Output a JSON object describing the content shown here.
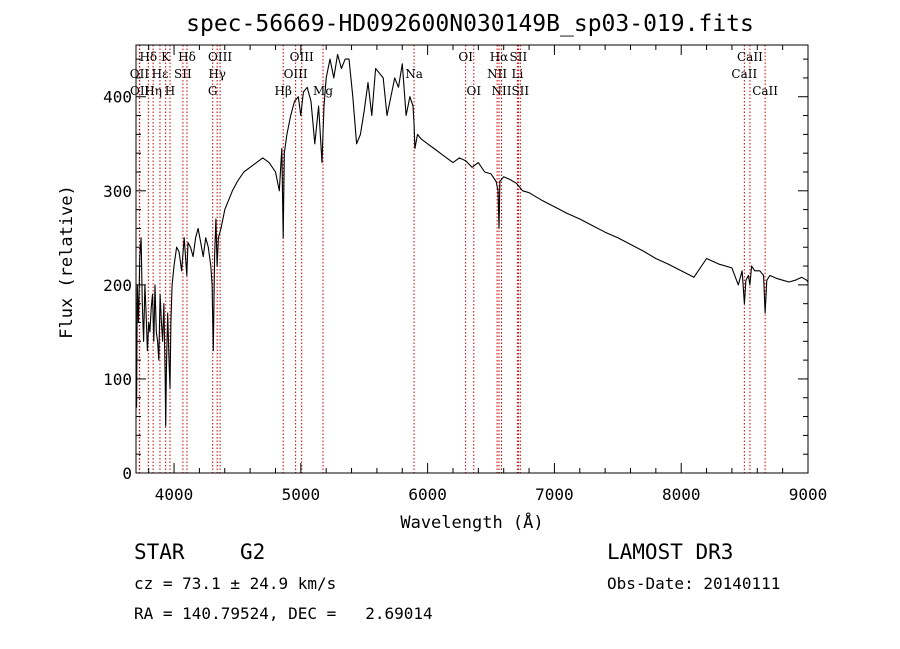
{
  "chart_data": {
    "type": "line",
    "title": "spec-56669-HD092600N030149B_sp03-019.fits",
    "xlabel": "Wavelength (Å)",
    "ylabel": "Flux (relative)",
    "xlim": [
      3700,
      9000
    ],
    "ylim": [
      0,
      455
    ],
    "xticks": [
      4000,
      5000,
      6000,
      7000,
      8000,
      9000
    ],
    "yticks": [
      0,
      100,
      200,
      300,
      400
    ],
    "x_minor_step": 200,
    "y_minor_step": 20,
    "line_color": "#000000",
    "marker_color": "#cc0000",
    "series": [
      {
        "name": "flux",
        "x": [
          3700,
          3705,
          3710,
          3720,
          3730,
          3740,
          3750,
          3760,
          3770,
          3780,
          3790,
          3800,
          3810,
          3820,
          3830,
          3840,
          3850,
          3860,
          3870,
          3880,
          3890,
          3900,
          3910,
          3920,
          3930,
          3934,
          3940,
          3950,
          3960,
          3968,
          3975,
          3985,
          4000,
          4020,
          4040,
          4060,
          4080,
          4101,
          4110,
          4130,
          4150,
          4170,
          4190,
          4210,
          4230,
          4250,
          4270,
          4290,
          4300,
          4310,
          4320,
          4330,
          4340,
          4350,
          4370,
          4400,
          4430,
          4460,
          4500,
          4550,
          4600,
          4650,
          4700,
          4750,
          4800,
          4830,
          4850,
          4861,
          4870,
          4890,
          4920,
          4950,
          4980,
          5000,
          5020,
          5050,
          5080,
          5110,
          5140,
          5167,
          5173,
          5183,
          5200,
          5230,
          5260,
          5290,
          5320,
          5350,
          5380,
          5410,
          5440,
          5470,
          5500,
          5530,
          5560,
          5590,
          5620,
          5650,
          5680,
          5710,
          5740,
          5770,
          5800,
          5830,
          5860,
          5885,
          5893,
          5900,
          5920,
          5950,
          6000,
          6050,
          6100,
          6150,
          6200,
          6250,
          6300,
          6350,
          6400,
          6450,
          6500,
          6540,
          6555,
          6563,
          6570,
          6600,
          6650,
          6700,
          6750,
          6800,
          6900,
          7000,
          7100,
          7200,
          7300,
          7400,
          7500,
          7600,
          7700,
          7800,
          7900,
          8000,
          8100,
          8200,
          8300,
          8400,
          8450,
          8480,
          8498,
          8510,
          8530,
          8542,
          8555,
          8580,
          8620,
          8650,
          8662,
          8675,
          8700,
          8750,
          8800,
          8850,
          8900,
          8950,
          8990,
          9000
        ],
        "y": [
          150,
          70,
          200,
          160,
          230,
          250,
          180,
          140,
          200,
          170,
          130,
          160,
          150,
          175,
          190,
          140,
          200,
          150,
          140,
          120,
          190,
          160,
          140,
          180,
          100,
          50,
          110,
          170,
          120,
          90,
          160,
          200,
          220,
          240,
          235,
          215,
          250,
          210,
          245,
          240,
          230,
          250,
          260,
          245,
          230,
          250,
          240,
          220,
          200,
          130,
          230,
          270,
          220,
          250,
          260,
          280,
          290,
          300,
          310,
          320,
          325,
          330,
          335,
          330,
          320,
          300,
          345,
          250,
          340,
          360,
          380,
          395,
          400,
          380,
          405,
          410,
          395,
          350,
          390,
          330,
          355,
          390,
          420,
          440,
          420,
          445,
          430,
          440,
          440,
          400,
          350,
          360,
          385,
          415,
          380,
          430,
          425,
          420,
          380,
          400,
          420,
          410,
          435,
          380,
          400,
          390,
          370,
          345,
          360,
          355,
          350,
          345,
          340,
          335,
          330,
          335,
          332,
          325,
          330,
          320,
          318,
          310,
          300,
          260,
          310,
          315,
          312,
          308,
          300,
          298,
          290,
          283,
          276,
          270,
          263,
          256,
          250,
          243,
          236,
          228,
          222,
          215,
          208,
          228,
          222,
          218,
          200,
          215,
          180,
          205,
          210,
          200,
          220,
          215,
          215,
          210,
          170,
          205,
          210,
          207,
          205,
          203,
          205,
          208,
          205,
          203
        ]
      }
    ],
    "lines": [
      {
        "label": "Hδ",
        "x": 4102,
        "row": 0
      },
      {
        "label": "Hδ",
        "x": 3797,
        "row": 0
      },
      {
        "label": "OII",
        "x": 3727,
        "row": 1
      },
      {
        "label": "OII",
        "x": 3729,
        "row": 2
      },
      {
        "label": "Hε",
        "x": 3889,
        "row": 1
      },
      {
        "label": "Hη",
        "x": 3835,
        "row": 2
      },
      {
        "label": "K",
        "x": 3934,
        "row": 0
      },
      {
        "label": "H",
        "x": 3968,
        "row": 2
      },
      {
        "label": "SII",
        "x": 4070,
        "row": 1
      },
      {
        "label": "OIII",
        "x": 4363,
        "row": 0
      },
      {
        "label": "Hγ",
        "x": 4340,
        "row": 1
      },
      {
        "label": "G",
        "x": 4305,
        "row": 2
      },
      {
        "label": "Hβ",
        "x": 4861,
        "row": 2
      },
      {
        "label": "OIII",
        "x": 5007,
        "row": 0
      },
      {
        "label": "OIII",
        "x": 4959,
        "row": 1
      },
      {
        "label": "Mg",
        "x": 5175,
        "row": 2
      },
      {
        "label": "Na",
        "x": 5893,
        "row": 1
      },
      {
        "label": "OI",
        "x": 6300,
        "row": 0
      },
      {
        "label": "OI",
        "x": 6364,
        "row": 2
      },
      {
        "label": "Hα",
        "x": 6563,
        "row": 0
      },
      {
        "label": "NII",
        "x": 6548,
        "row": 1
      },
      {
        "label": "NII",
        "x": 6583,
        "row": 2
      },
      {
        "label": "SII",
        "x": 6716,
        "row": 0
      },
      {
        "label": "Li",
        "x": 6708,
        "row": 1
      },
      {
        "label": "SII",
        "x": 6731,
        "row": 2
      },
      {
        "label": "CaII",
        "x": 8542,
        "row": 0
      },
      {
        "label": "CaII",
        "x": 8498,
        "row": 1
      },
      {
        "label": "CaII",
        "x": 8662,
        "row": 2
      }
    ]
  },
  "info": {
    "class": "STAR",
    "subclass": "G2",
    "survey": "LAMOST DR3",
    "cz": "cz = 73.1 ± 24.9 km/s",
    "obs_date": "Obs-Date: 20140111",
    "radec": "RA = 140.79524, DEC =   2.69014"
  }
}
